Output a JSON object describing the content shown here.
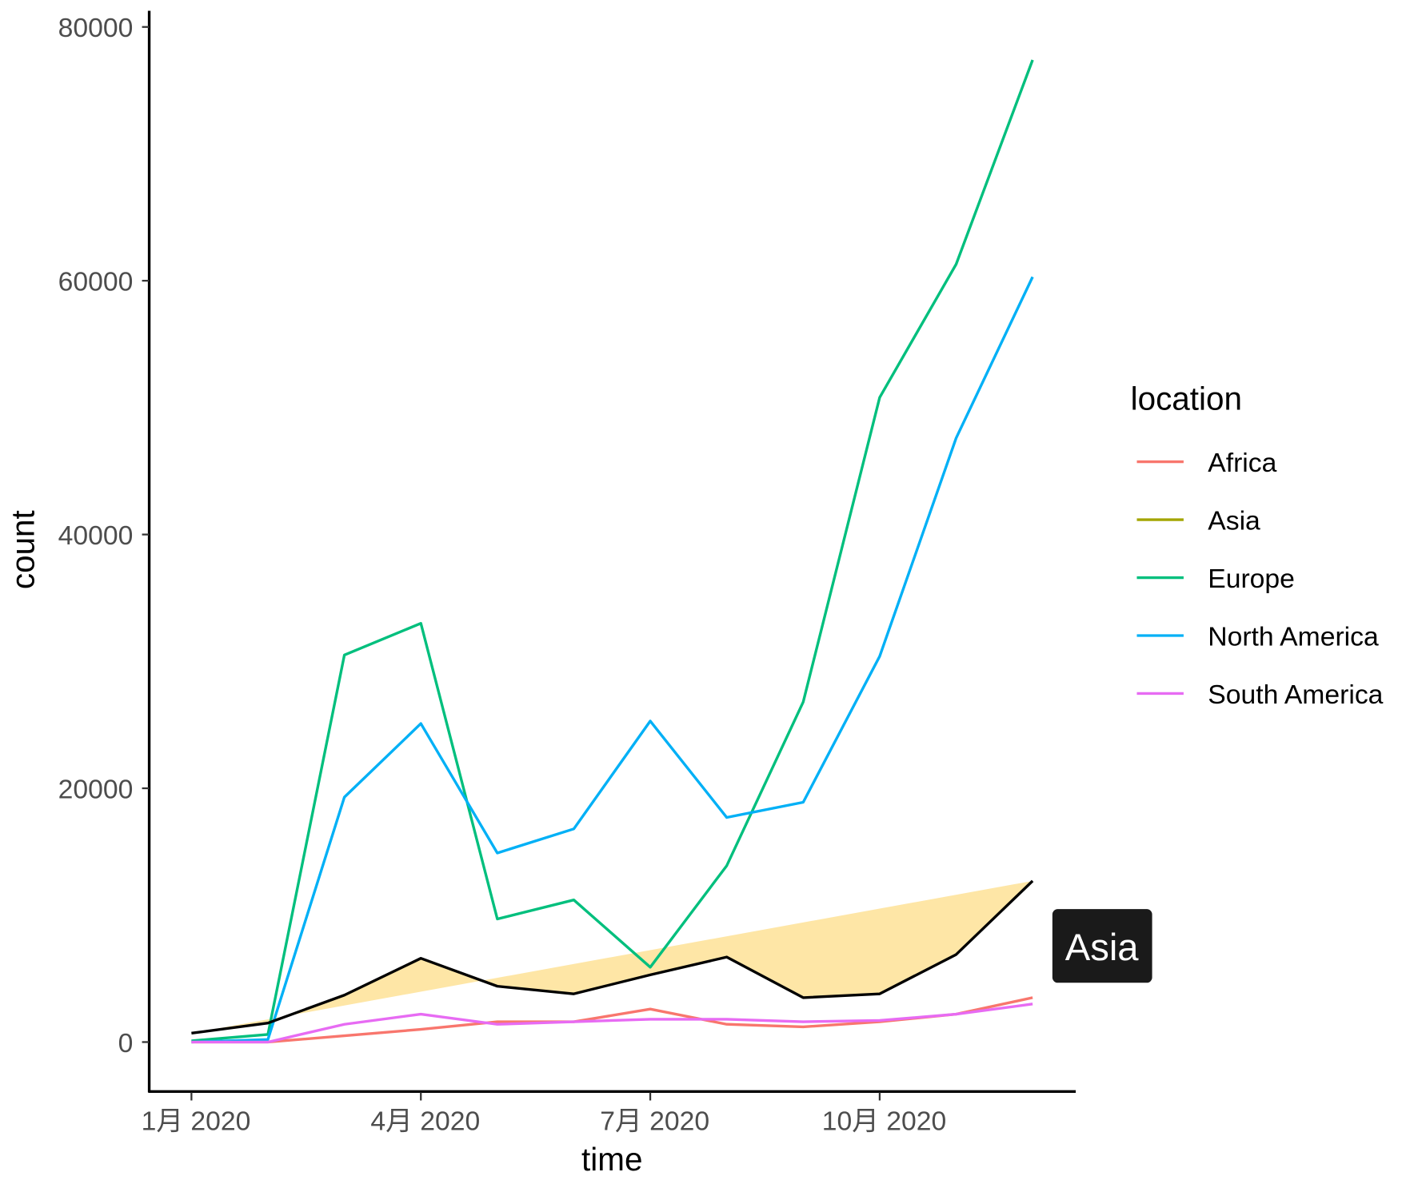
{
  "chart_data": {
    "type": "line",
    "xlabel": "time",
    "ylabel": "count",
    "ylim": [
      -4000,
      81500
    ],
    "y_ticks": [
      "0",
      "20000",
      "40000",
      "60000",
      "80000"
    ],
    "x_tick_labels": [
      "1月 2020",
      "4月 2020",
      "7月 2020",
      "10月 2020"
    ],
    "x": [
      "2020-01",
      "2020-02",
      "2020-03",
      "2020-04",
      "2020-05",
      "2020-06",
      "2020-07",
      "2020-08",
      "2020-09",
      "2020-10",
      "2020-11",
      "2020-12"
    ],
    "legend": {
      "title": "location",
      "position": "right"
    },
    "grid": false,
    "series": [
      {
        "name": "Africa",
        "color": "#F8766D",
        "values": [
          0,
          0,
          500,
          1000,
          1600,
          1600,
          2600,
          1400,
          1200,
          1600,
          2200,
          3500
        ]
      },
      {
        "name": "Asia",
        "color": "#A3A500",
        "drawn_color": "#000000",
        "highlighted": true,
        "values": [
          700,
          1500,
          3700,
          6600,
          4400,
          3800,
          5300,
          6700,
          3500,
          3800,
          6900,
          12700
        ]
      },
      {
        "name": "Europe",
        "color": "#00BF7D",
        "values": [
          100,
          600,
          30500,
          33000,
          9700,
          11200,
          5900,
          13900,
          26800,
          50800,
          61300,
          77400
        ]
      },
      {
        "name": "North America",
        "color": "#00B0F6",
        "values": [
          0,
          200,
          19300,
          25100,
          14900,
          16800,
          25300,
          17700,
          18900,
          30400,
          47600,
          60300
        ]
      },
      {
        "name": "South America",
        "color": "#E76BF3",
        "values": [
          0,
          0,
          1400,
          2200,
          1400,
          1600,
          1800,
          1800,
          1600,
          1700,
          2200,
          3000
        ]
      }
    ],
    "highlight_fill": "#FEE6A6",
    "annotation": {
      "text": "Asia",
      "background": "#1a1a1a",
      "color": "#ffffff"
    }
  }
}
